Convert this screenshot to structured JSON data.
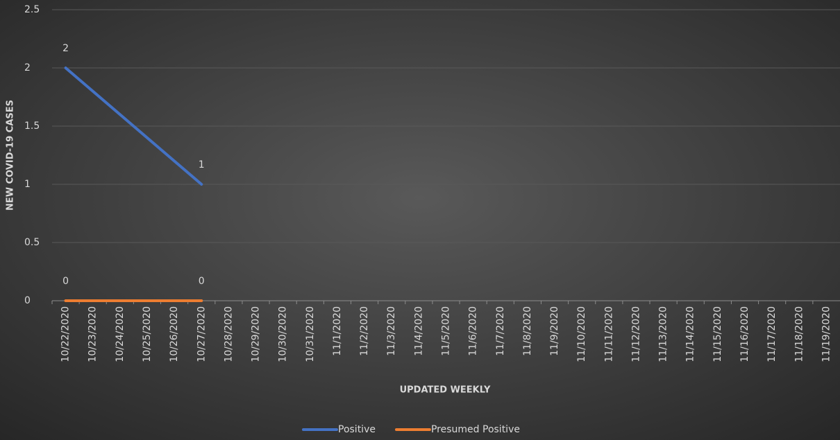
{
  "chart_data": {
    "type": "line",
    "x_label": "UPDATED WEEKLY",
    "y_label": "NEW COVID-19 CASES",
    "xticks": [
      "10/22/2020",
      "10/23/2020",
      "10/24/2020",
      "10/25/2020",
      "10/26/2020",
      "10/27/2020",
      "10/28/2020",
      "10/29/2020",
      "10/30/2020",
      "10/31/2020",
      "11/1/2020",
      "11/2/2020",
      "11/3/2020",
      "11/4/2020",
      "11/5/2020",
      "11/6/2020",
      "11/7/2020",
      "11/8/2020",
      "11/9/2020",
      "11/10/2020",
      "11/11/2020",
      "11/12/2020",
      "11/13/2020",
      "11/14/2020",
      "11/15/2020",
      "11/16/2020",
      "11/17/2020",
      "11/18/2020",
      "11/19/2020"
    ],
    "x": [
      "10/22/2020",
      "10/27/2020"
    ],
    "series": [
      {
        "name": "Positive",
        "color": "#4472c4",
        "values": [
          2,
          1
        ]
      },
      {
        "name": "Presumed Positive",
        "color": "#ed7d31",
        "values": [
          0,
          0
        ]
      }
    ],
    "ylim": [
      0,
      2.5
    ],
    "yticks": [
      0,
      0.5,
      1,
      1.5,
      2,
      2.5
    ],
    "grid": true,
    "legend": "bottom"
  }
}
